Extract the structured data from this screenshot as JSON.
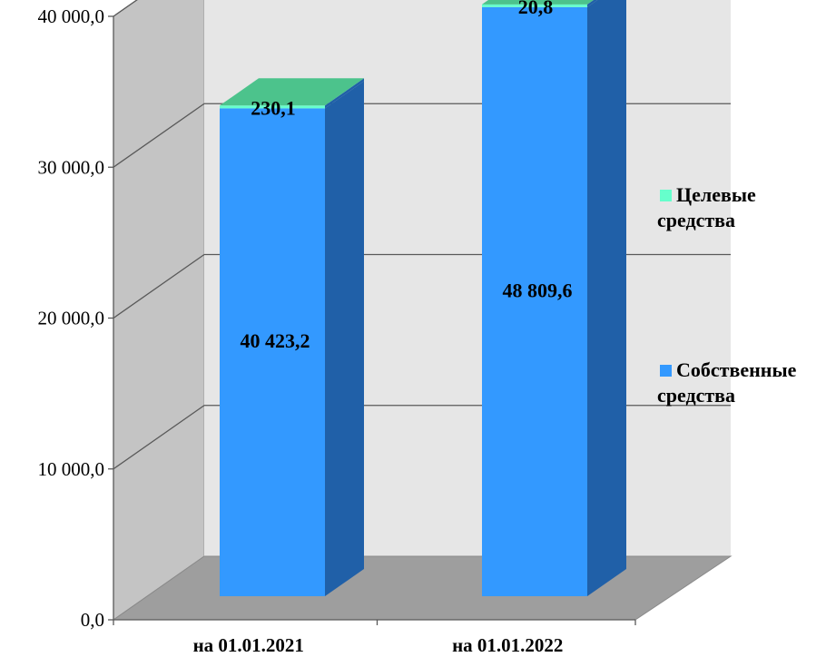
{
  "chart_data": {
    "type": "bar",
    "stacked": true,
    "three_d": true,
    "categories": [
      "на 01.01.2021",
      "на 01.01.2022"
    ],
    "series": [
      {
        "name": "Собственные средства",
        "values": [
          40423.2,
          48809.6
        ],
        "labels": [
          "40 423,2",
          "48 809,6"
        ],
        "color": "#3399ff",
        "side_color": "#2060a8"
      },
      {
        "name": "Целевые средства",
        "values": [
          230.1,
          20.8
        ],
        "labels": [
          "230,1",
          "20,8"
        ],
        "color": "#66ffcc",
        "top_color": "#4cc38c"
      }
    ],
    "y_ticks": [
      "0,0",
      "10 000,0",
      "20 000,0",
      "30 000,0",
      "40 000,0"
    ],
    "ylim": [
      0,
      50000
    ],
    "grid": true,
    "legend_position": "right",
    "legend_labels": [
      [
        "Целевые",
        "средства"
      ],
      [
        "Собственные",
        "средства"
      ]
    ]
  }
}
